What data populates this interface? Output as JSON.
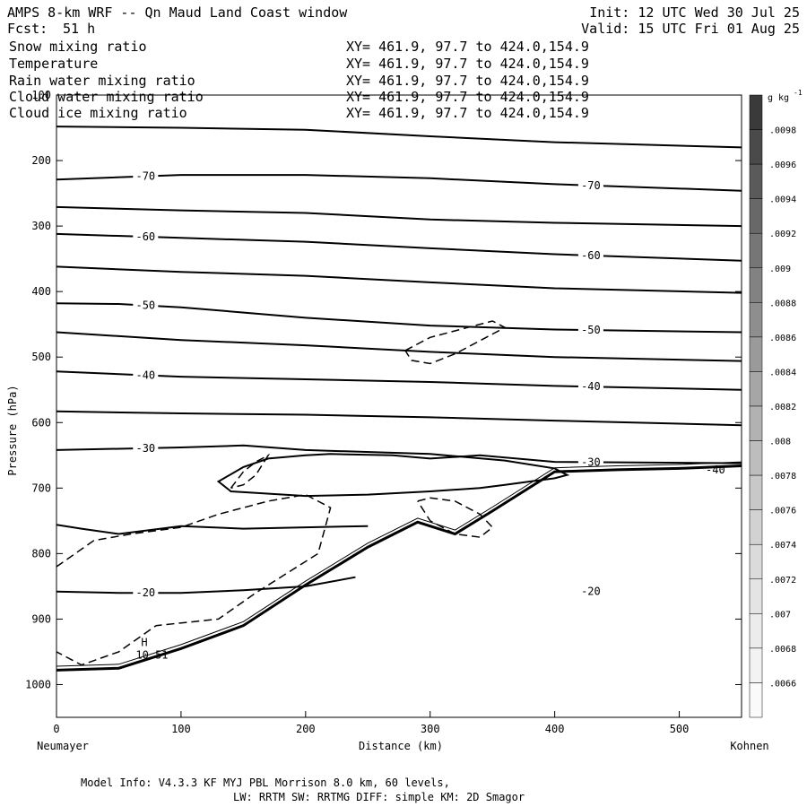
{
  "header": {
    "title": "AMPS 8-km WRF -- Qn Maud Land Coast window",
    "fcst_label": "Fcst:",
    "fcst_value": "51 h",
    "init": "Init: 12 UTC Wed 30 Jul 25",
    "valid": "Valid: 15 UTC Fri 01 Aug 25"
  },
  "fields": [
    {
      "name": "Snow mixing ratio",
      "xy": "XY= 461.9, 97.7 to 424.0,154.9",
      "color": "#000000"
    },
    {
      "name": "Temperature",
      "xy": "XY= 461.9, 97.7 to 424.0,154.9",
      "color": "#000000"
    },
    {
      "name": "Rain water mixing ratio",
      "xy": "XY= 461.9, 97.7 to 424.0,154.9",
      "color": "#d00000"
    },
    {
      "name": "Cloud water mixing ratio",
      "xy": "XY= 461.9, 97.7 to 424.0,154.9",
      "color": "#1010c0"
    },
    {
      "name": "Cloud ice mixing ratio",
      "xy": "XY= 461.9, 97.7 to 424.0,154.9",
      "color": "#000000"
    }
  ],
  "chart_data": {
    "type": "line",
    "subtype": "vertical cross-section (contours)",
    "xlabel": "Distance (km)",
    "ylabel": "Pressure (hPa)",
    "xlim": [
      0,
      550
    ],
    "ylim": [
      1050,
      100
    ],
    "x_ticks": [
      0,
      100,
      200,
      300,
      400,
      500
    ],
    "y_ticks": [
      100,
      200,
      300,
      400,
      500,
      600,
      700,
      800,
      900,
      1000
    ],
    "x_left_label": "Neumayer",
    "x_right_label": "Kohnen",
    "isotherm_series": [
      {
        "x": [
          0,
          100,
          200,
          300,
          400,
          550
        ],
        "y": [
          148,
          150,
          153,
          163,
          172,
          180
        ]
      },
      {
        "name": "-70",
        "x": [
          0,
          100,
          200,
          300,
          400,
          550
        ],
        "y": [
          229,
          222,
          222,
          227,
          236,
          246
        ]
      },
      {
        "x": [
          0,
          100,
          200,
          300,
          400,
          550
        ],
        "y": [
          271,
          276,
          280,
          290,
          295,
          300
        ]
      },
      {
        "name": "-60",
        "x": [
          0,
          100,
          200,
          300,
          400,
          550
        ],
        "y": [
          312,
          318,
          324,
          334,
          343,
          353
        ]
      },
      {
        "x": [
          0,
          100,
          200,
          300,
          400,
          550
        ],
        "y": [
          362,
          370,
          376,
          386,
          395,
          402
        ]
      },
      {
        "name": "-50",
        "x": [
          0,
          50,
          100,
          200,
          300,
          400,
          550
        ],
        "y": [
          418,
          419,
          424,
          440,
          452,
          458,
          462
        ]
      },
      {
        "x": [
          0,
          100,
          200,
          300,
          400,
          550
        ],
        "y": [
          462,
          474,
          482,
          492,
          500,
          506
        ]
      },
      {
        "name": "-40",
        "x": [
          0,
          100,
          200,
          300,
          400,
          550
        ],
        "y": [
          522,
          530,
          534,
          538,
          544,
          550
        ]
      },
      {
        "x": [
          0,
          100,
          200,
          300,
          400,
          550
        ],
        "y": [
          583,
          586,
          588,
          592,
          597,
          604
        ]
      },
      {
        "name": "-30",
        "x": [
          0,
          100,
          150,
          200,
          300,
          360,
          400,
          410,
          400,
          380,
          360,
          340,
          300,
          250,
          200,
          140,
          130,
          150,
          170,
          200,
          220,
          270,
          300,
          340,
          400,
          550
        ],
        "y": [
          642,
          638,
          635,
          642,
          648,
          658,
          670,
          680,
          685,
          690,
          695,
          700,
          705,
          710,
          712,
          705,
          690,
          668,
          655,
          650,
          648,
          650,
          655,
          650,
          660,
          662
        ]
      },
      {
        "x": [
          0,
          20,
          50,
          100,
          150,
          200,
          250
        ],
        "y": [
          756,
          762,
          770,
          758,
          762,
          760,
          758
        ]
      },
      {
        "name": "-20",
        "x": [
          0,
          50,
          100,
          150,
          200,
          240
        ],
        "y": [
          858,
          860,
          860,
          856,
          850,
          836
        ]
      }
    ],
    "terrain": {
      "x": [
        0,
        50,
        100,
        150,
        200,
        250,
        290,
        320,
        350,
        400,
        450,
        500,
        550
      ],
      "y": [
        978,
        975,
        945,
        910,
        848,
        790,
        752,
        770,
        735,
        675,
        672,
        670,
        666
      ]
    },
    "cloud_ice_dashed": [
      {
        "x": [
          0,
          30,
          60,
          100,
          130,
          170,
          200,
          220,
          210,
          160,
          130,
          80,
          50,
          20,
          0
        ],
        "y": [
          820,
          780,
          770,
          760,
          740,
          720,
          710,
          730,
          800,
          860,
          900,
          910,
          950,
          970,
          950
        ]
      },
      {
        "x": [
          290,
          300,
          320,
          340,
          350,
          340,
          320,
          300,
          290
        ],
        "y": [
          720,
          715,
          720,
          740,
          760,
          775,
          770,
          750,
          720
        ]
      },
      {
        "x": [
          280,
          300,
          330,
          350,
          360,
          345,
          320,
          300,
          285,
          280
        ],
        "y": [
          490,
          470,
          455,
          445,
          455,
          470,
          495,
          510,
          505,
          490
        ]
      },
      {
        "x": [
          140,
          150,
          160,
          170,
          160,
          150,
          140
        ],
        "y": [
          700,
          675,
          660,
          650,
          680,
          695,
          700
        ]
      }
    ],
    "annotations": {
      "h_marker": "H",
      "h_value": "10.51",
      "edge_label": "-40",
      "h_position": [
        55,
        955
      ]
    },
    "colorbar": {
      "unit": "g kg",
      "unit_exp": "-1",
      "labels": [
        ".0098",
        ".0096",
        ".0094",
        ".0092",
        ".009",
        ".0088",
        ".0086",
        ".0084",
        ".0082",
        ".008",
        ".0078",
        ".0076",
        ".0074",
        ".0072",
        ".007",
        ".0068",
        ".0066"
      ],
      "colors_top_to_bottom": [
        "#3a3a3a",
        "#4a4a4a",
        "#5a5a5a",
        "#686868",
        "#767676",
        "#828282",
        "#8e8e8e",
        "#9a9a9a",
        "#a6a6a6",
        "#b2b2b2",
        "#bdbdbd",
        "#c8c8c8",
        "#d2d2d2",
        "#dbdbdb",
        "#e4e4e4",
        "#ececec",
        "#f3f3f3",
        "#fafafa"
      ]
    }
  },
  "footer": {
    "line1": "Model Info: V4.3.3   KF      MYJ PBL  Morrison            8.0 km,  60 levels,",
    "line2": "LW: RRTM SW: RRTMG   DIFF: simple KM: 2D Smagor"
  }
}
